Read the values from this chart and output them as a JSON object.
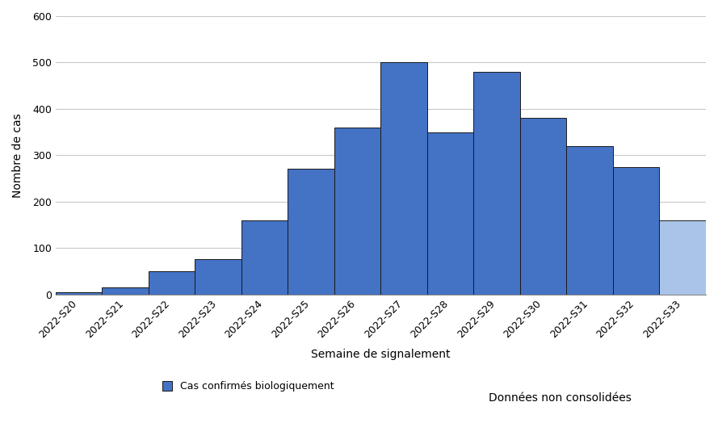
{
  "categories": [
    "2022-S20",
    "2022-S21",
    "2022-S22",
    "2022-S23",
    "2022-S24",
    "2022-S25",
    "2022-S26",
    "2022-S27",
    "2022-S28",
    "2022-S29",
    "2022-S30",
    "2022-S31",
    "2022-S32",
    "2022-S33"
  ],
  "values": [
    5,
    15,
    50,
    75,
    160,
    270,
    360,
    500,
    350,
    480,
    380,
    320,
    275,
    160
  ],
  "bar_color_main": "#4472C4",
  "bar_color_last": "#A9C4E8",
  "bar_edge_color": "#1a1a1a",
  "ylabel": "Nombre de cas",
  "xlabel": "Semaine de signalement",
  "ylim": [
    0,
    600
  ],
  "yticks": [
    0,
    100,
    200,
    300,
    400,
    500,
    600
  ],
  "legend_label": "Cas confirmés biologiquement",
  "non_consolidated_label": "Données non consolidées",
  "background_color": "#ffffff",
  "grid_color": "#c8c8c8",
  "axis_fontsize": 10,
  "tick_fontsize": 9,
  "legend_fontsize": 9
}
